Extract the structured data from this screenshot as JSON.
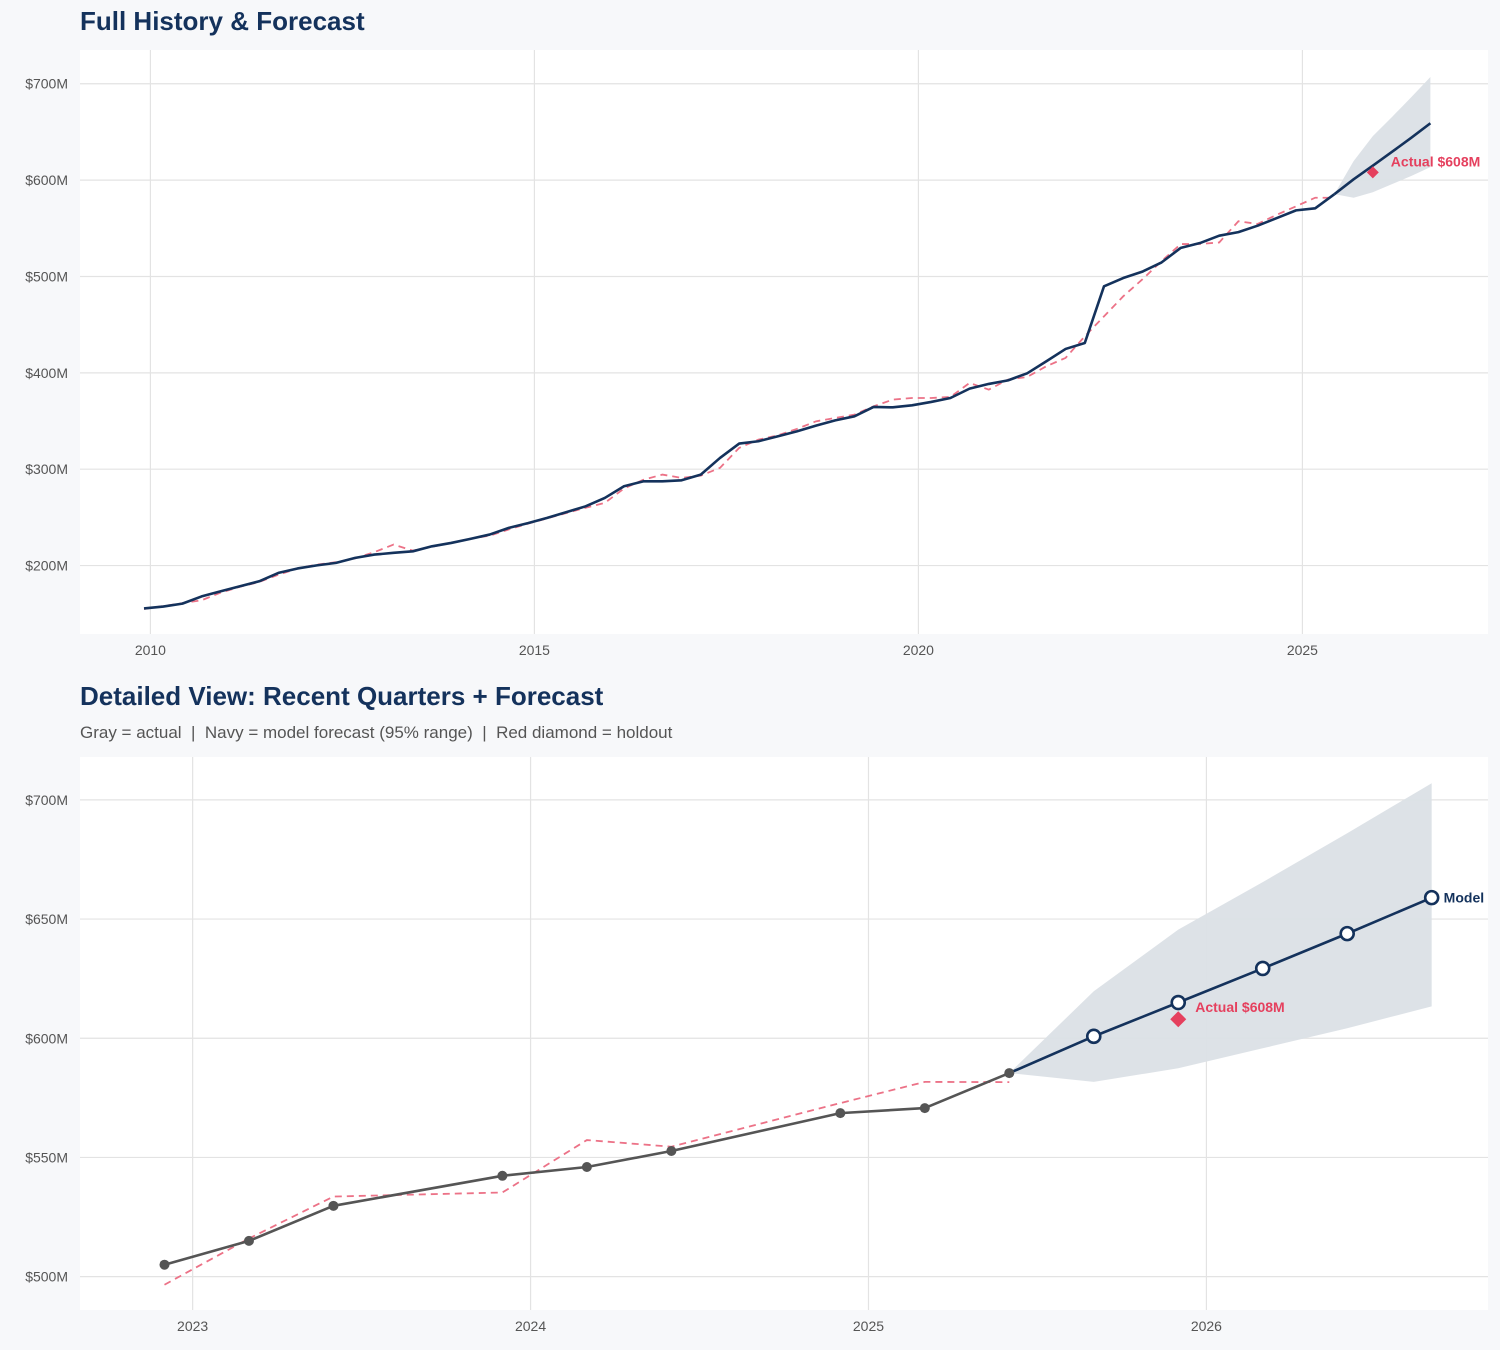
{
  "top_title": "Full History & Forecast",
  "bottom_title": "Detailed View: Recent Quarters + Forecast",
  "bottom_subtitle": "Gray = actual  |  Navy = model forecast (95% range)  |  Red diamond = holdout",
  "colors": {
    "navy": "#14325c",
    "actual_gray": "#555555",
    "fitted_red": "#ec7287",
    "holdout_red": "#e5405e",
    "band": "#dbe0e6",
    "grid": "#e3e3e3"
  },
  "chart_data": [
    {
      "type": "line",
      "title": "Full History & Forecast",
      "x_type": "date",
      "xlim": [
        "2009-02",
        "2027-06"
      ],
      "ylim": [
        129,
        735
      ],
      "x_ticks": [
        "2010",
        "2015",
        "2020",
        "2025"
      ],
      "y_ticks": [
        200,
        300,
        400,
        500,
        600,
        700
      ],
      "y_tick_labels": [
        "$200M",
        "$300M",
        "$400M",
        "$500M",
        "$600M",
        "$700M"
      ],
      "grid": true,
      "dates": [
        "2009-12",
        "2010-03",
        "2010-06",
        "2010-09",
        "2010-12",
        "2011-03",
        "2011-06",
        "2011-09",
        "2011-12",
        "2012-03",
        "2012-06",
        "2012-09",
        "2012-12",
        "2013-03",
        "2013-06",
        "2013-09",
        "2013-12",
        "2014-03",
        "2014-06",
        "2014-09",
        "2014-12",
        "2015-03",
        "2015-06",
        "2015-09",
        "2015-12",
        "2016-03",
        "2016-06",
        "2016-09",
        "2016-12",
        "2017-03",
        "2017-06",
        "2017-09",
        "2017-12",
        "2018-03",
        "2018-06",
        "2018-09",
        "2018-12",
        "2019-03",
        "2019-06",
        "2019-09",
        "2019-12",
        "2020-03",
        "2020-06",
        "2020-09",
        "2020-12",
        "2021-03",
        "2021-06",
        "2021-09",
        "2021-12",
        "2022-03",
        "2022-06",
        "2022-09",
        "2022-12",
        "2023-03",
        "2023-06",
        "2023-09",
        "2023-12",
        "2024-03",
        "2024-06",
        "2024-09",
        "2024-12",
        "2025-03",
        "2025-06"
      ],
      "actual": [
        155.5,
        157.5,
        160.5,
        168,
        173.4,
        178.5,
        183.7,
        192.4,
        197,
        200.2,
        202.8,
        208,
        211.4,
        213.2,
        214.8,
        220,
        223.5,
        227.7,
        232.2,
        239.1,
        244,
        249.5,
        255.5,
        261.5,
        270.2,
        282.3,
        287.4,
        287.4,
        288.5,
        294.4,
        311.7,
        326.6,
        329,
        334.1,
        339.3,
        345.2,
        350.7,
        354.9,
        364.6,
        364.2,
        366.3,
        369.8,
        373.9,
        383.6,
        388.5,
        392.2,
        399.5,
        412,
        424.8,
        431,
        489.8,
        498.4,
        505,
        514.6,
        529.7,
        534.7,
        542.3,
        546,
        552.7,
        560.6,
        568.6,
        570.7,
        585.4
      ],
      "fitted": [
        155,
        158,
        161,
        164,
        172,
        178,
        183,
        190.5,
        197,
        201,
        203.5,
        207.5,
        214,
        221.8,
        215.5,
        219.5,
        223.5,
        228,
        231,
        237.5,
        243.5,
        249,
        254.5,
        260,
        265,
        280,
        289,
        294.4,
        291,
        293.4,
        301.4,
        322.1,
        330.7,
        335,
        341.8,
        349.7,
        353.2,
        356.6,
        365.3,
        372.2,
        373.9,
        373.9,
        375,
        389.5,
        382.6,
        393,
        395.7,
        406.9,
        415.5,
        437.9,
        458.6,
        479.4,
        497,
        516,
        533.6,
        533.7,
        535.3,
        557.3,
        554.5,
        564,
        572.8,
        581.7,
        581.6
      ],
      "forecast": {
        "dates": [
          "2025-06",
          "2025-09",
          "2025-12",
          "2026-03",
          "2026-06",
          "2026-09"
        ],
        "values": [
          585.4,
          600.8,
          615,
          629.3,
          643.9,
          659
        ],
        "upper": [
          585.4,
          619.7,
          645.6,
          665.5,
          686,
          707
        ],
        "lower": [
          585.4,
          581.7,
          587.4,
          595.8,
          604.2,
          613.4
        ]
      },
      "holdout": {
        "date": "2025-12",
        "value": 608,
        "label": "Actual $608M"
      }
    },
    {
      "type": "line",
      "title": "Detailed View: Recent Quarters + Forecast",
      "x_type": "date",
      "xlim": [
        "2022-09",
        "2026-11"
      ],
      "ylim": [
        486,
        718
      ],
      "x_ticks": [
        "2023",
        "2024",
        "2025",
        "2026"
      ],
      "y_ticks": [
        500,
        550,
        600,
        650,
        700
      ],
      "y_tick_labels": [
        "$500M",
        "$550M",
        "$600M",
        "$650M",
        "$700M"
      ],
      "grid": true,
      "dates": [
        "2022-12",
        "2023-03",
        "2023-06",
        "2023-12",
        "2024-03",
        "2024-06",
        "2024-12",
        "2025-03",
        "2025-06"
      ],
      "actual": [
        505,
        515,
        529.7,
        542.3,
        546,
        552.7,
        568.6,
        570.7,
        585.4
      ],
      "fitted": [
        496.6,
        516,
        533.6,
        535.3,
        557.3,
        554.5,
        572.8,
        581.7,
        581.6
      ],
      "forecast": {
        "dates": [
          "2025-06",
          "2025-09",
          "2025-12",
          "2026-03",
          "2026-06",
          "2026-09"
        ],
        "values": [
          585.4,
          600.8,
          615,
          629.3,
          643.9,
          659
        ],
        "upper": [
          585.4,
          619.7,
          645.6,
          665.5,
          686,
          707
        ],
        "lower": [
          585.4,
          581.7,
          587.4,
          595.8,
          604.2,
          613.4
        ]
      },
      "holdout": {
        "date": "2025-12",
        "value": 608,
        "label": "Actual $608M"
      },
      "end_label": "Model"
    }
  ]
}
